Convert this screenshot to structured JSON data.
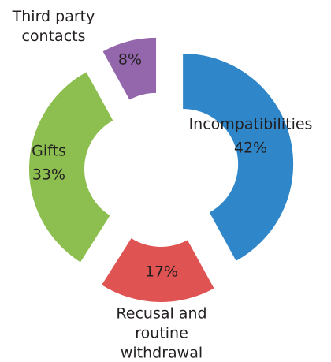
{
  "chart_data": {
    "type": "donut",
    "categories": [
      "Incompatibilities",
      "Recusal and routine withdrawal",
      "Gifts",
      "Third party contacts"
    ],
    "values": [
      42,
      17,
      33,
      8
    ],
    "value_labels": [
      "42%",
      "17%",
      "33%",
      "8%"
    ],
    "colors": [
      "#2f86c9",
      "#e05353",
      "#8cbf4f",
      "#9467ad"
    ]
  }
}
